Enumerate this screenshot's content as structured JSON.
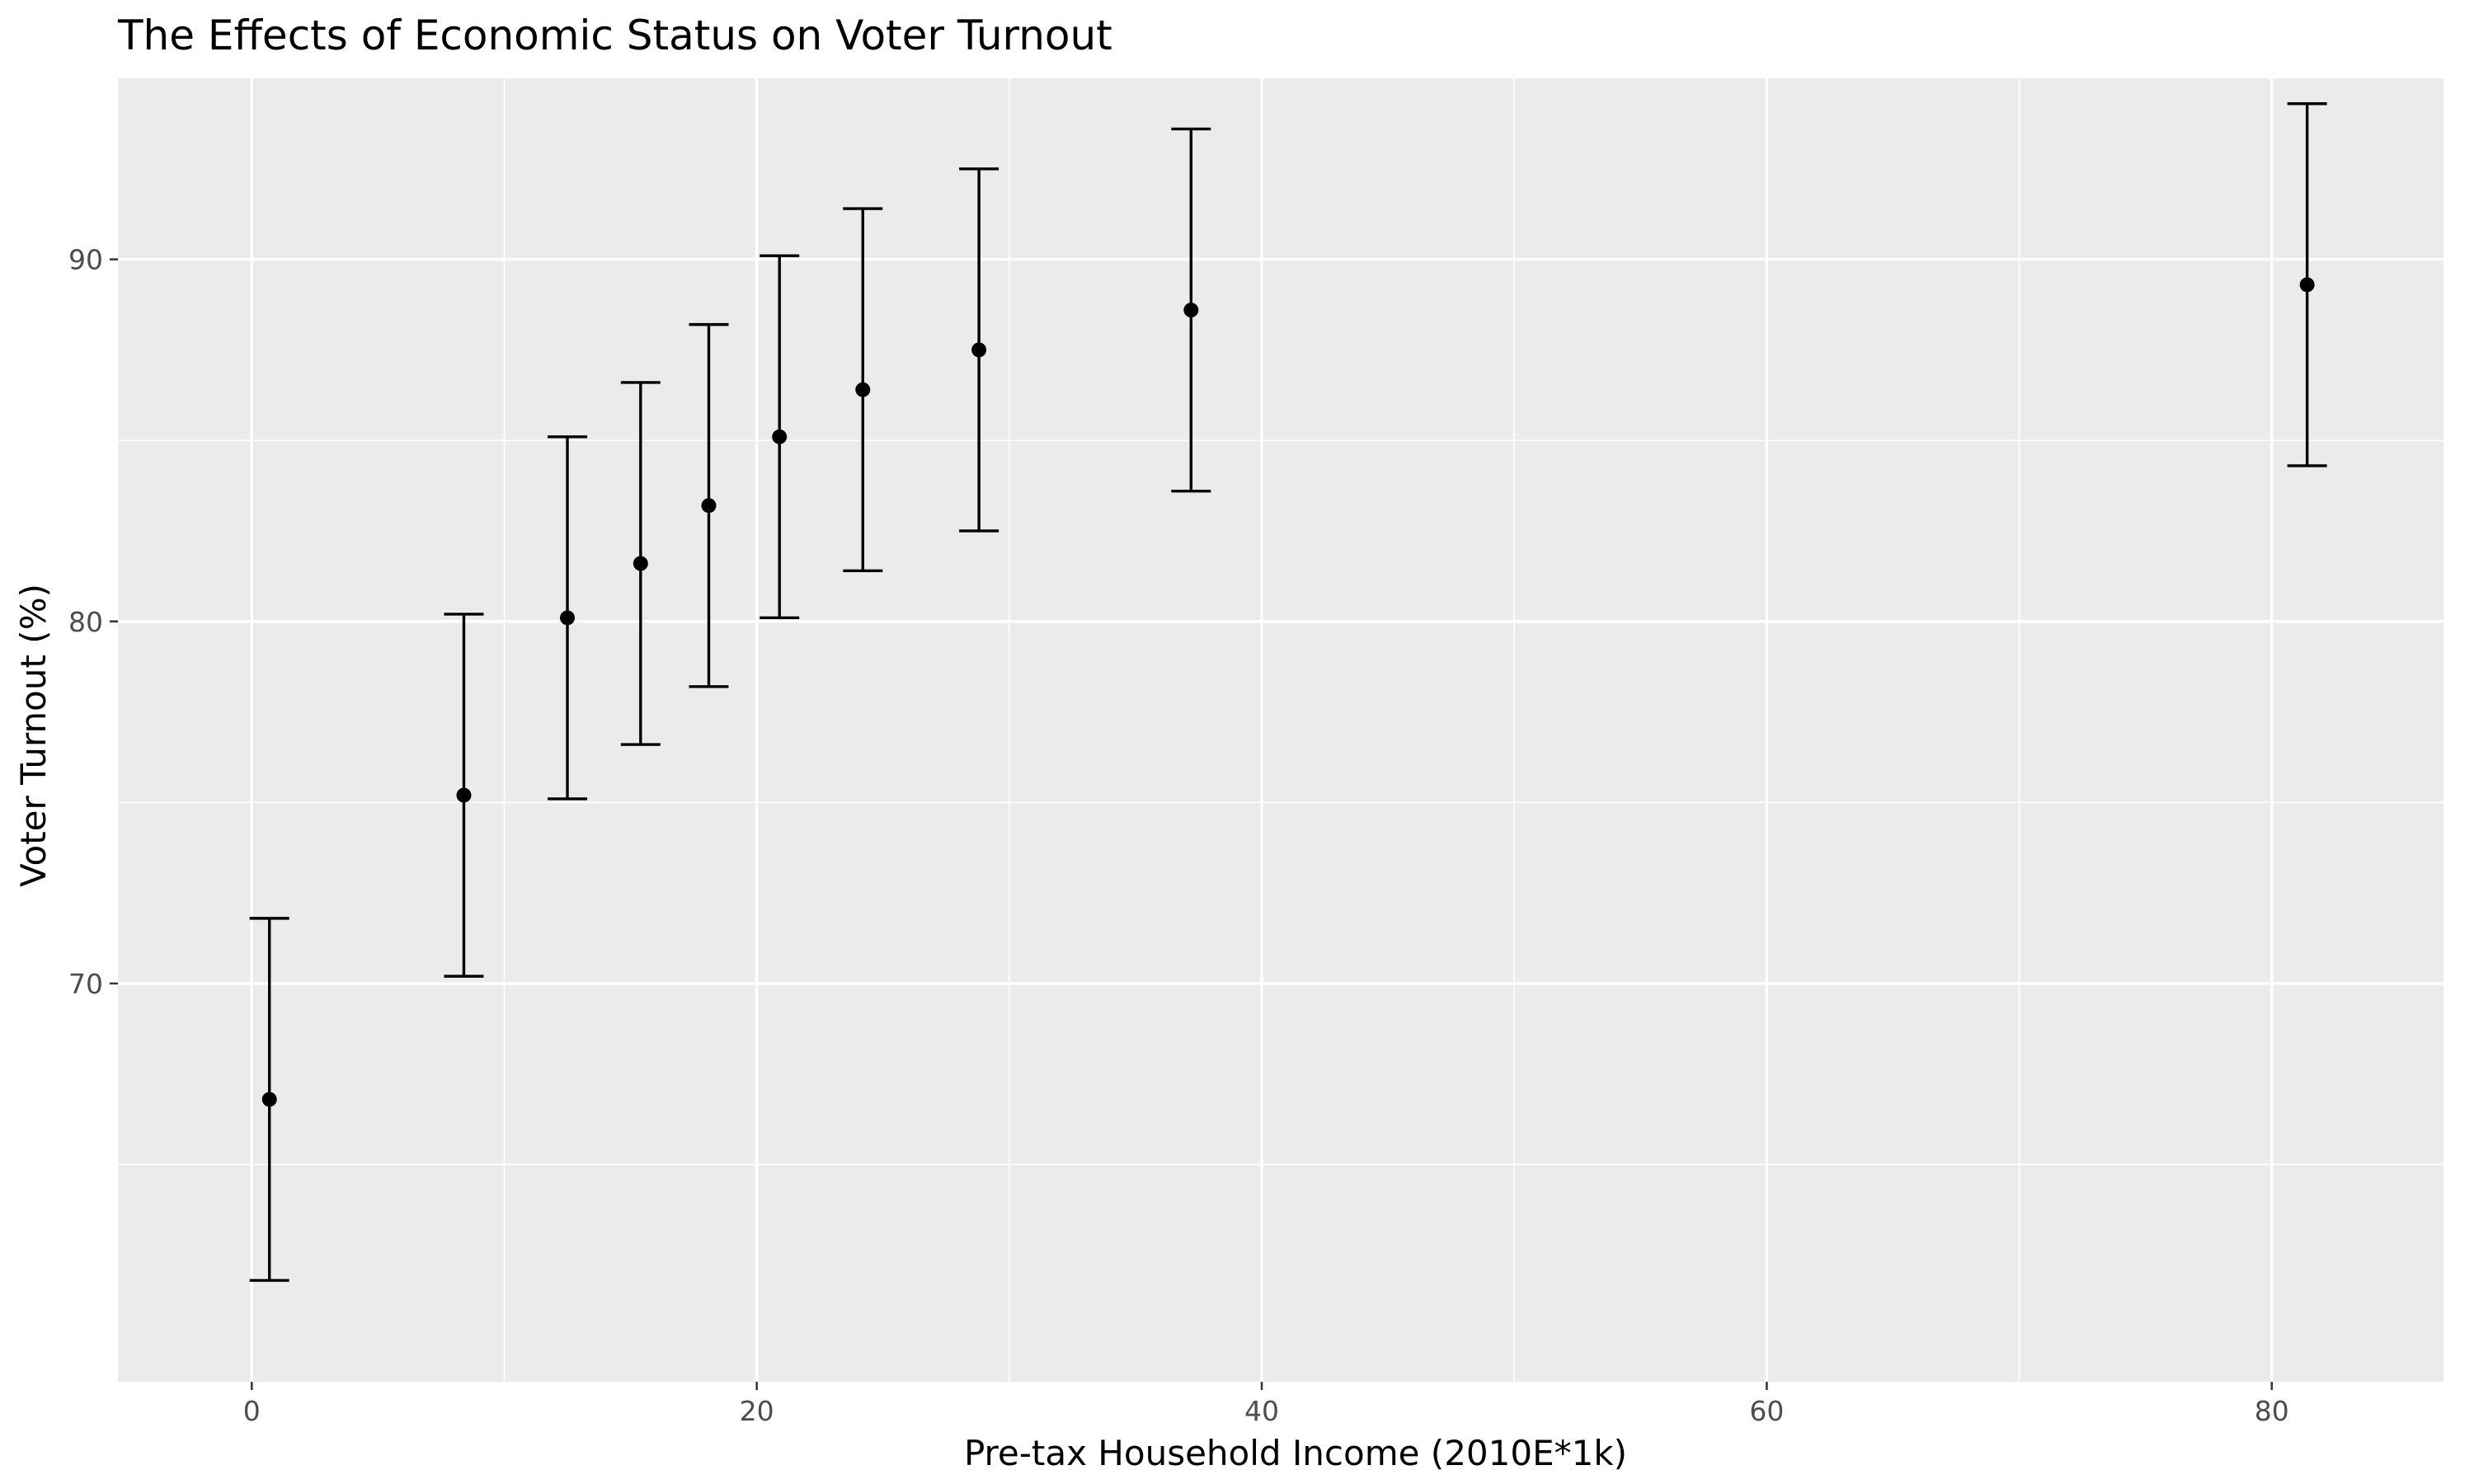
{
  "chart_data": {
    "type": "scatter",
    "title": "The Effects of Economic Status on Voter Turnout",
    "xlabel": "Pre-tax Household Income (2010E*1k)",
    "ylabel": "Voter Turnout (%)",
    "xlim": [
      -5.3,
      86.8
    ],
    "ylim": [
      59.0,
      95.0
    ],
    "x_ticks": [
      0,
      20,
      40,
      60,
      80
    ],
    "y_ticks": [
      70,
      80,
      90
    ],
    "grid": true,
    "legend": "none",
    "colors": {
      "panel_background": "#ebebeb",
      "grid": "#ffffff",
      "points": "#000000",
      "error_bars": "#000000"
    },
    "points": [
      {
        "x": 0.7,
        "y": 66.8,
        "ymin": 61.8,
        "ymax": 71.8
      },
      {
        "x": 8.4,
        "y": 75.2,
        "ymin": 70.2,
        "ymax": 80.2
      },
      {
        "x": 12.5,
        "y": 80.1,
        "ymin": 75.1,
        "ymax": 85.1
      },
      {
        "x": 15.4,
        "y": 81.6,
        "ymin": 76.6,
        "ymax": 86.6
      },
      {
        "x": 18.1,
        "y": 83.2,
        "ymin": 78.2,
        "ymax": 88.2
      },
      {
        "x": 20.9,
        "y": 85.1,
        "ymin": 80.1,
        "ymax": 90.1
      },
      {
        "x": 24.2,
        "y": 86.4,
        "ymin": 81.4,
        "ymax": 91.4
      },
      {
        "x": 28.8,
        "y": 87.5,
        "ymin": 82.5,
        "ymax": 92.5
      },
      {
        "x": 37.2,
        "y": 88.6,
        "ymin": 83.6,
        "ymax": 93.6
      },
      {
        "x": 81.4,
        "y": 89.3,
        "ymin": 84.3,
        "ymax": 94.3
      }
    ]
  }
}
